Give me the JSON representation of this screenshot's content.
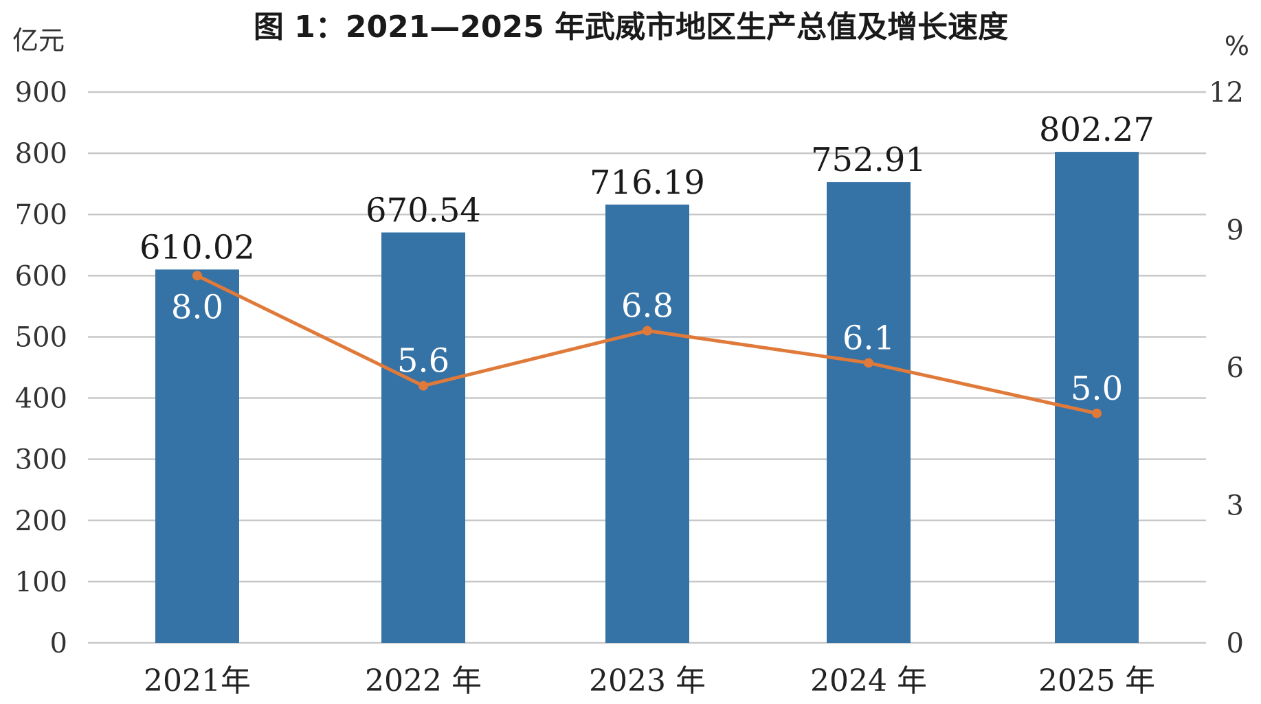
{
  "chart_data": {
    "type": "bar",
    "title": "图 1：2021—2025 年武威市地区生产总值及增长速度",
    "categories": [
      "2021年",
      "2022 年",
      "2023 年",
      "2024 年",
      "2025 年"
    ],
    "y_left": {
      "unit": "亿元",
      "lim": [
        0,
        900
      ],
      "ticks": [
        0,
        100,
        200,
        300,
        400,
        500,
        600,
        700,
        800,
        900
      ]
    },
    "y_right": {
      "unit": "%",
      "lim": [
        0,
        12
      ],
      "ticks": [
        0,
        3,
        6,
        9,
        12
      ]
    },
    "grid": true,
    "series": [
      {
        "type": "bar",
        "axis": "left",
        "values": [
          610.02,
          670.54,
          716.19,
          752.91,
          802.27
        ],
        "labels": [
          "610.02",
          "670.54",
          "716.19",
          "752.91",
          "802.27"
        ],
        "color": "#3572a6"
      },
      {
        "type": "line",
        "axis": "right",
        "values": [
          8.0,
          5.6,
          6.8,
          6.1,
          5.0
        ],
        "labels": [
          "8.0",
          "5.6",
          "6.8",
          "6.1",
          "5.0"
        ],
        "color": "#e07a3a"
      }
    ]
  }
}
